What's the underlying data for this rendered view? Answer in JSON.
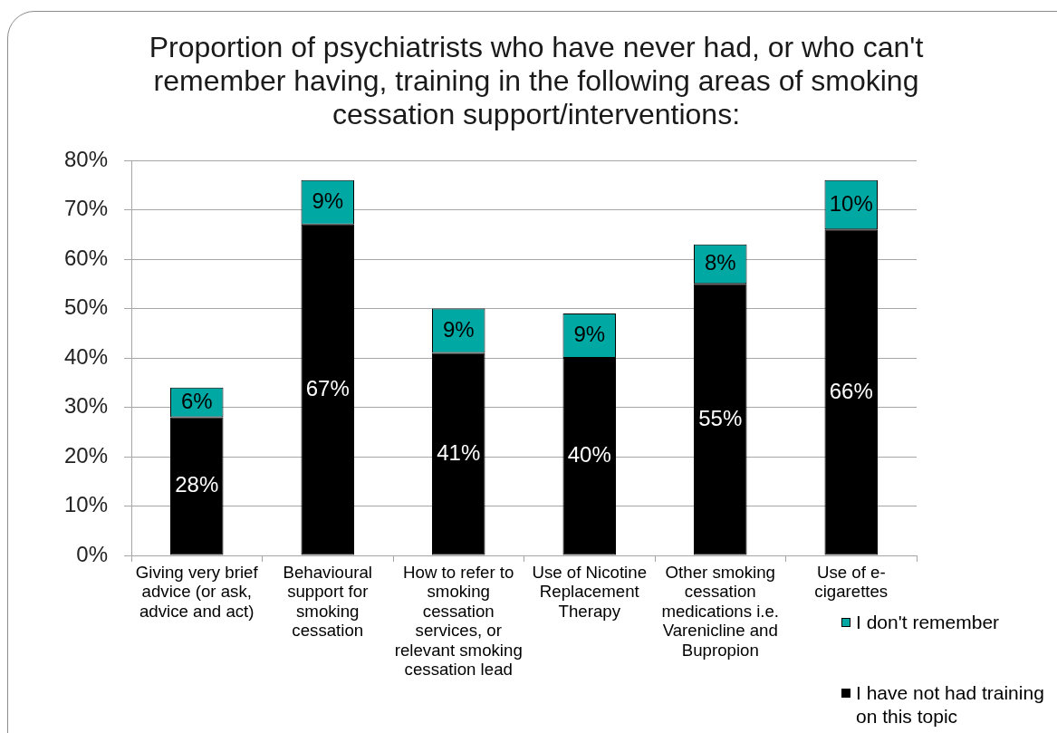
{
  "chart_data": {
    "type": "bar",
    "title": "Proportion of psychiatrists who have never had, or who can't remember having, training in the following areas of smoking cessation support/interventions:",
    "categories": [
      "Giving very brief advice (or ask, advice and act)",
      "Behavioural support for smoking cessation",
      "How to refer to smoking cessation services, or relevant smoking cessation lead",
      "Use of Nicotine Replacement Therapy",
      "Other smoking cessation medications i.e. Varenicline and Bupropion",
      "Use of e-cigarettes"
    ],
    "series": [
      {
        "name": "I have not had training on this topic",
        "color": "#000000",
        "values": [
          28,
          67,
          41,
          40,
          55,
          66
        ],
        "value_labels": [
          "28%",
          "67%",
          "41%",
          "40%",
          "55%",
          "66%"
        ]
      },
      {
        "name": "I don't remember",
        "color": "#00a8a4",
        "values": [
          6,
          9,
          9,
          9,
          8,
          10
        ],
        "value_labels": [
          "6%",
          "9%",
          "9%",
          "9%",
          "8%",
          "10%"
        ]
      }
    ],
    "stacked": true,
    "ylim": [
      0,
      80
    ],
    "yticks": [
      {
        "value": 0,
        "label": "0%"
      },
      {
        "value": 10,
        "label": "10%"
      },
      {
        "value": 20,
        "label": "20%"
      },
      {
        "value": 30,
        "label": "30%"
      },
      {
        "value": 40,
        "label": "40%"
      },
      {
        "value": 50,
        "label": "50%"
      },
      {
        "value": 60,
        "label": "60%"
      },
      {
        "value": 70,
        "label": "70%"
      },
      {
        "value": 80,
        "label": "80%"
      }
    ],
    "grid": "y",
    "legend": "bottom right"
  }
}
